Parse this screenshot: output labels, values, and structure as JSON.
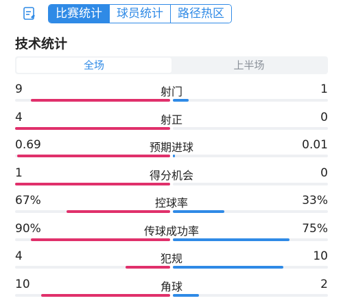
{
  "header": {
    "tabs": [
      {
        "label": "比赛统计",
        "active": true
      },
      {
        "label": "球员统计",
        "active": false
      },
      {
        "label": "路径热区",
        "active": false
      }
    ],
    "icon": "document-icon"
  },
  "section_title": "技术统计",
  "segment": {
    "all": "全场",
    "first_half": "上半场"
  },
  "colors": {
    "home": "#e0306b",
    "away": "#2f8ae6",
    "accent": "#2f8ae6"
  },
  "stats": [
    {
      "label": "射门",
      "home": "9",
      "away": "1",
      "home_share": 0.9,
      "away_share": 0.1
    },
    {
      "label": "射正",
      "home": "4",
      "away": "0",
      "home_share": 1.0,
      "away_share": 0.0
    },
    {
      "label": "预期进球",
      "home": "0.69",
      "away": "0.01",
      "home_share": 0.986,
      "away_share": 0.014
    },
    {
      "label": "得分机会",
      "home": "1",
      "away": "0",
      "home_share": 1.0,
      "away_share": 0.0
    },
    {
      "label": "控球率",
      "home": "67%",
      "away": "33%",
      "home_share": 0.67,
      "away_share": 0.33
    },
    {
      "label": "传球成功率",
      "home": "90%",
      "away": "75%",
      "home_share": 0.9,
      "away_share": 0.75
    },
    {
      "label": "犯规",
      "home": "4",
      "away": "10",
      "home_share": 0.286,
      "away_share": 0.714
    },
    {
      "label": "角球",
      "home": "10",
      "away": "2",
      "home_share": 0.833,
      "away_share": 0.167
    }
  ]
}
